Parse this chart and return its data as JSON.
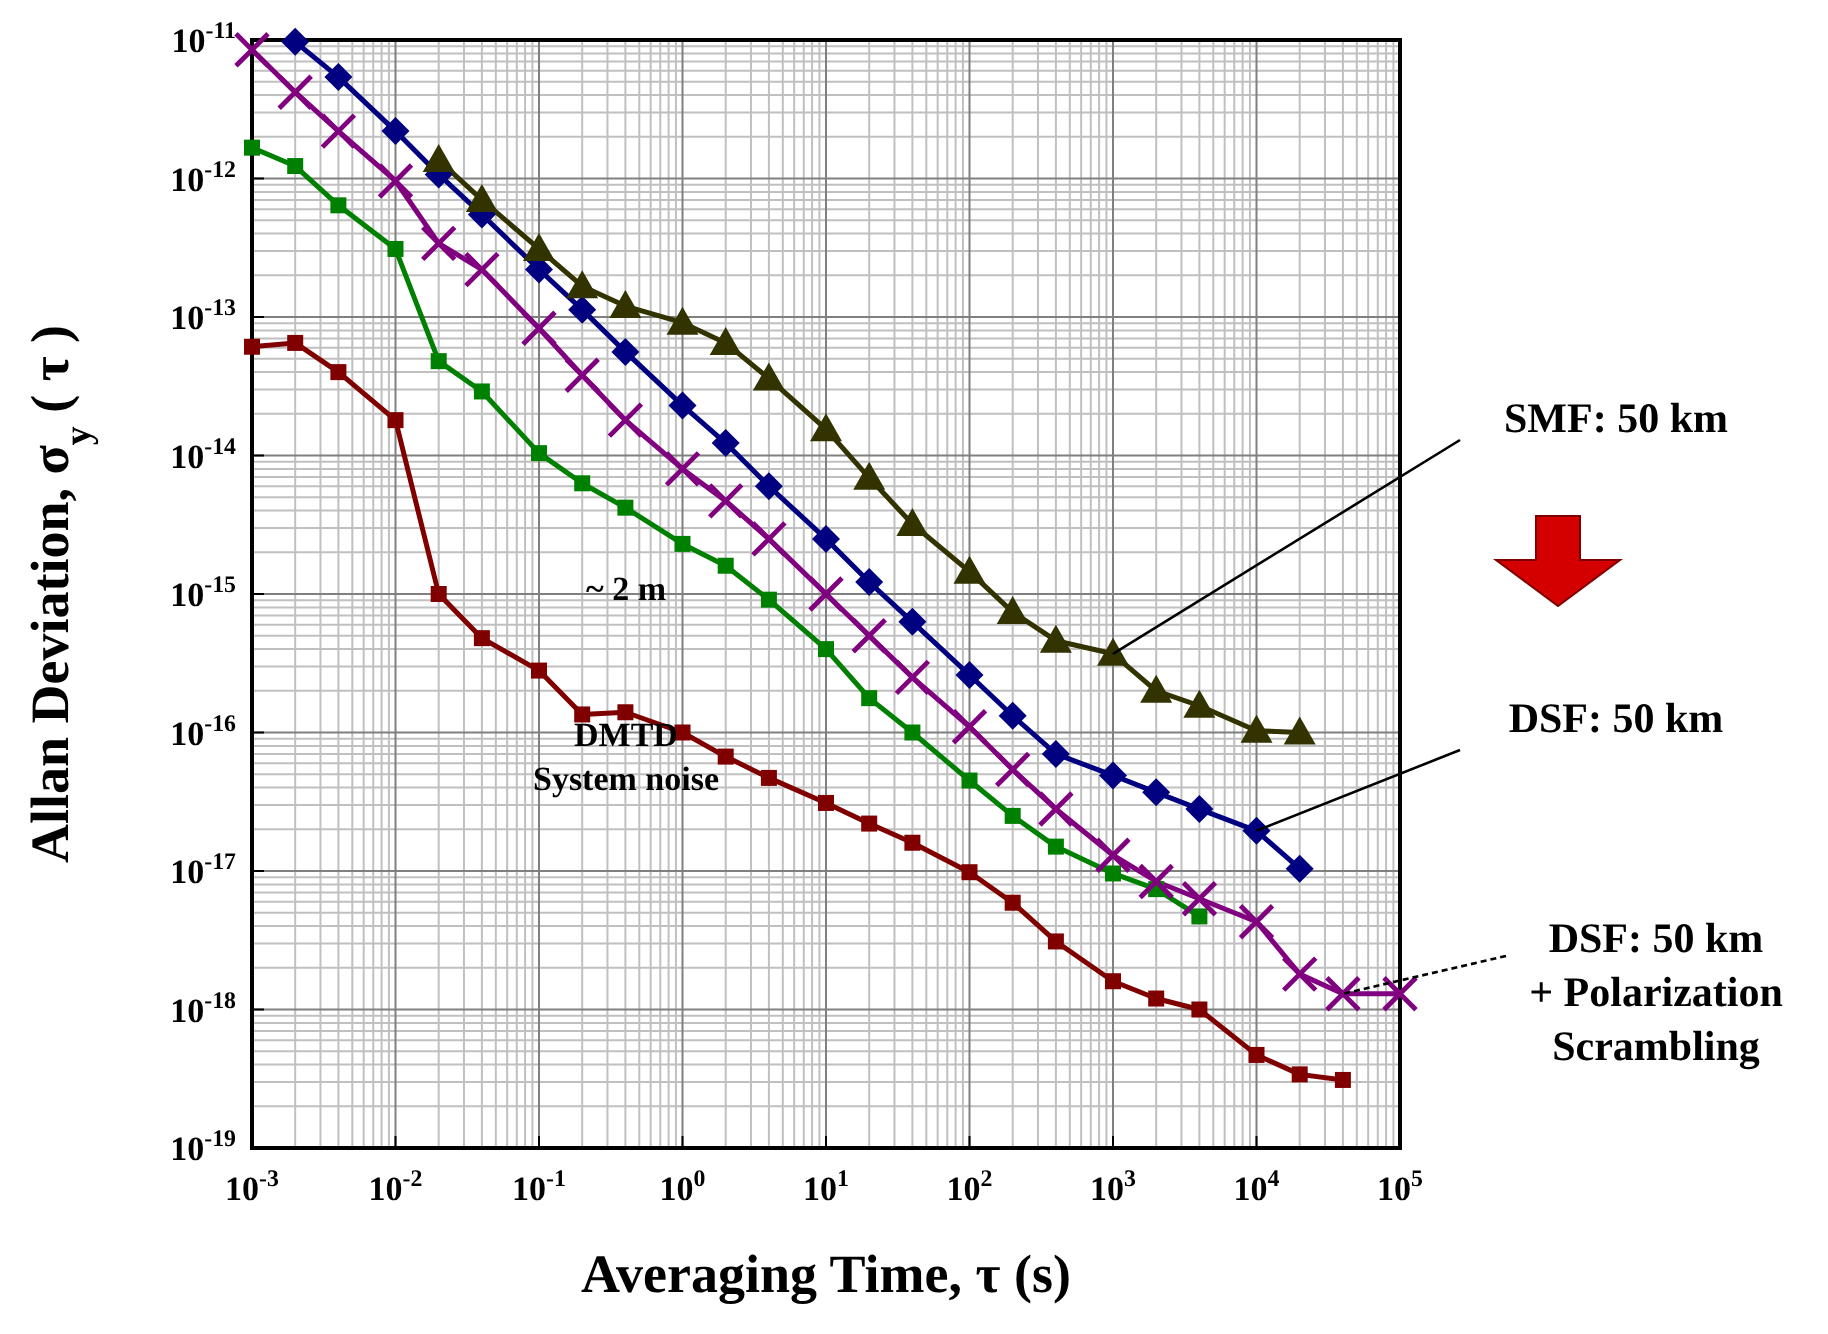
{
  "chart_data": {
    "type": "line",
    "xlabel": "Averaging Time,  τ (s)",
    "ylabel": "Allan Deviation, σ$_{y}$ ( τ )",
    "log": "xy",
    "grid": true,
    "legend": false,
    "line_style": "solid",
    "xlim": [
      0.001,
      100000
    ],
    "ylim": [
      1e-19,
      1e-11
    ],
    "xticks": [
      {
        "value": 0.001,
        "label": "10$^{-3}$"
      },
      {
        "value": 0.01,
        "label": "10$^{-2}$"
      },
      {
        "value": 0.1,
        "label": "10$^{-1}$"
      },
      {
        "value": 1,
        "label": "10$^{0}$"
      },
      {
        "value": 10,
        "label": "10$^{1}$"
      },
      {
        "value": 100,
        "label": "10$^{2}$"
      },
      {
        "value": 1000,
        "label": "10$^{3}$"
      },
      {
        "value": 10000,
        "label": "10$^{4}$"
      },
      {
        "value": 100000,
        "label": "10$^{5}$"
      }
    ],
    "yticks": [
      {
        "value": 1e-19,
        "label": "10$^{-19}$"
      },
      {
        "value": 1e-18,
        "label": "10$^{-18}$"
      },
      {
        "value": 1e-17,
        "label": "10$^{-17}$"
      },
      {
        "value": 1e-16,
        "label": "10$^{-16}$"
      },
      {
        "value": 1e-15,
        "label": "10$^{-15}$"
      },
      {
        "value": 1e-14,
        "label": "10$^{-14}$"
      },
      {
        "value": 1e-13,
        "label": "10$^{-13}$"
      },
      {
        "value": 1e-12,
        "label": "10$^{-12}$"
      },
      {
        "value": 1e-11,
        "label": "10$^{-11}$"
      }
    ],
    "series": [
      {
        "name": "DMTD\nSystem noise",
        "color": "#800000",
        "marker": "square",
        "x": [
          0.001,
          0.002,
          0.004,
          0.01,
          0.02,
          0.04,
          0.1,
          0.2,
          0.4,
          1,
          2,
          4,
          10,
          20,
          40,
          100,
          200,
          400,
          1000,
          2000,
          4000,
          10000,
          20000,
          40000
        ],
        "values": [
          6.1e-14,
          6.5e-14,
          4e-14,
          1.8e-14,
          1e-15,
          4.8e-16,
          2.8e-16,
          1.35e-16,
          1.4e-16,
          1e-16,
          6.7e-17,
          4.7e-17,
          3.1e-17,
          2.2e-17,
          1.6e-17,
          9.8e-18,
          5.9e-18,
          3.1e-18,
          1.6e-18,
          1.2e-18,
          1e-18,
          4.7e-19,
          3.4e-19,
          3.1e-19
        ]
      },
      {
        "name": "~ 2 m",
        "color": "#008000",
        "marker": "square",
        "x": [
          0.001,
          0.002,
          0.004,
          0.01,
          0.02,
          0.04,
          0.1,
          0.2,
          0.4,
          1,
          2,
          4,
          10,
          20,
          40,
          100,
          200,
          400,
          1000,
          2000,
          4000
        ],
        "values": [
          1.67e-12,
          1.23e-12,
          6.4e-13,
          3.1e-13,
          4.8e-14,
          2.9e-14,
          1.04e-14,
          6.3e-15,
          4.2e-15,
          2.3e-15,
          1.6e-15,
          9.1e-16,
          4e-16,
          1.77e-16,
          1e-16,
          4.5e-17,
          2.5e-17,
          1.5e-17,
          9.6e-18,
          7.4e-18,
          4.7e-18
        ]
      },
      {
        "name": "DSF: 50 km\n+ Polarization\nScrambling",
        "color": "#800080",
        "marker": "cross",
        "x": [
          0.001,
          0.002,
          0.004,
          0.01,
          0.02,
          0.04,
          0.1,
          0.2,
          0.4,
          1,
          2,
          4,
          10,
          20,
          40,
          100,
          200,
          400,
          1000,
          2000,
          4000,
          10000,
          20000,
          40000,
          100000
        ],
        "values": [
          8.5e-12,
          4.2e-12,
          2.2e-12,
          9.6e-13,
          3.4e-13,
          2.2e-13,
          8.3e-14,
          3.8e-14,
          1.8e-14,
          8e-15,
          4.7e-15,
          2.5e-15,
          1e-15,
          5e-16,
          2.5e-16,
          1.1e-16,
          5.4e-17,
          2.8e-17,
          1.3e-17,
          8.4e-18,
          6.3e-18,
          4.3e-18,
          1.8e-18,
          1.3e-18,
          1.3e-18
        ]
      },
      {
        "name": "DSF: 50 km",
        "color": "#000080",
        "marker": "diamond",
        "x": [
          0.002,
          0.004,
          0.01,
          0.02,
          0.04,
          0.1,
          0.2,
          0.4,
          1,
          2,
          4,
          10,
          20,
          40,
          100,
          200,
          400,
          1000,
          2000,
          4000,
          10000,
          20000
        ],
        "values": [
          9.7e-12,
          5.4e-12,
          2.2e-12,
          1.07e-12,
          5.5e-13,
          2.2e-13,
          1.13e-13,
          5.6e-14,
          2.3e-14,
          1.23e-14,
          6e-15,
          2.5e-15,
          1.22e-15,
          6.3e-16,
          2.6e-16,
          1.32e-16,
          7e-17,
          4.9e-17,
          3.7e-17,
          2.8e-17,
          1.95e-17,
          1.04e-17
        ]
      },
      {
        "name": "SMF: 50 km",
        "color": "#333300",
        "marker": "triangle",
        "x": [
          0.02,
          0.04,
          0.1,
          0.2,
          0.4,
          1,
          2,
          4,
          10,
          20,
          40,
          100,
          200,
          400,
          1000,
          2000,
          4000,
          10000,
          20000
        ],
        "values": [
          1.36e-12,
          7e-13,
          3.1e-13,
          1.67e-13,
          1.2e-13,
          9.1e-14,
          6.5e-14,
          3.6e-14,
          1.55e-14,
          6.9e-15,
          3.2e-15,
          1.45e-15,
          7.4e-16,
          4.6e-16,
          3.7e-16,
          2e-16,
          1.56e-16,
          1.03e-16,
          1e-16
        ]
      }
    ]
  }
}
